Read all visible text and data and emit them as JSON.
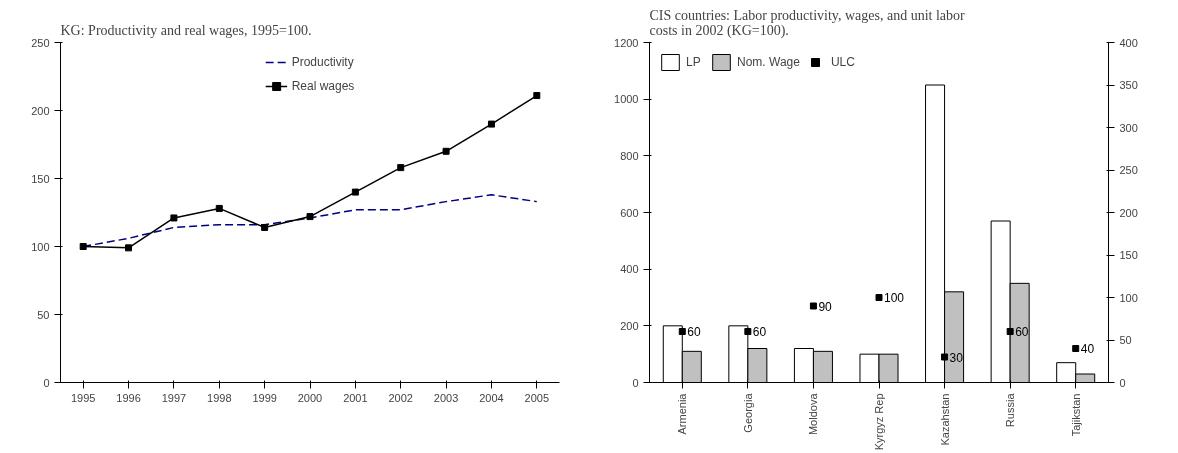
{
  "chart_data": [
    {
      "type": "line",
      "title": "KG: Productivity and real wages, 1995=100.",
      "categories": [
        "1995",
        "1996",
        "1997",
        "1998",
        "1999",
        "2000",
        "2001",
        "2002",
        "2003",
        "2004",
        "2005"
      ],
      "series": [
        {
          "name": "Productivity",
          "color": "#000080",
          "line_style": "dashed",
          "marker": "none",
          "values": [
            100,
            106,
            114,
            116,
            116,
            121,
            127,
            127,
            133,
            138,
            133
          ]
        },
        {
          "name": "Real wages",
          "color": "#000000",
          "line_style": "solid",
          "marker": "square",
          "values": [
            100,
            99,
            121,
            128,
            114,
            122,
            140,
            158,
            170,
            190,
            211
          ]
        }
      ],
      "ylim": [
        0,
        250
      ],
      "yticks": [
        0,
        50,
        100,
        150,
        200,
        250
      ],
      "grid": false,
      "legend": "top"
    },
    {
      "type": "bar",
      "title": "CIS countries: Labor productivity, wages, and unit labor costs in 2002 (KG=100).",
      "categories": [
        "Armenia",
        "Georgia",
        "Moldova",
        "Kyrgyz Rep",
        "Kazahstan",
        "Russia",
        "Tajikstan"
      ],
      "series": [
        {
          "name": "LP",
          "color": "#ffffff",
          "values": [
            200,
            200,
            120,
            100,
            1050,
            570,
            70
          ]
        },
        {
          "name": "Nom. Wage",
          "color": "#c0c0c0",
          "values": [
            110,
            120,
            110,
            100,
            320,
            350,
            30
          ]
        },
        {
          "name": "ULC",
          "type": "scatter",
          "axis": "y2",
          "marker": "square",
          "color": "#000000",
          "values": [
            60,
            60,
            90,
            100,
            30,
            60,
            40
          ],
          "value_labels": [
            "60",
            "60",
            "90",
            "100",
            "30",
            "60",
            "40"
          ]
        }
      ],
      "ylim": [
        0,
        1200
      ],
      "yticks": [
        0,
        200,
        400,
        600,
        800,
        1000,
        1200
      ],
      "y2lim": [
        0,
        400
      ],
      "y2ticks": [
        0,
        50,
        100,
        150,
        200,
        250,
        300,
        350,
        400
      ],
      "grid": false,
      "legend": "top left"
    }
  ]
}
